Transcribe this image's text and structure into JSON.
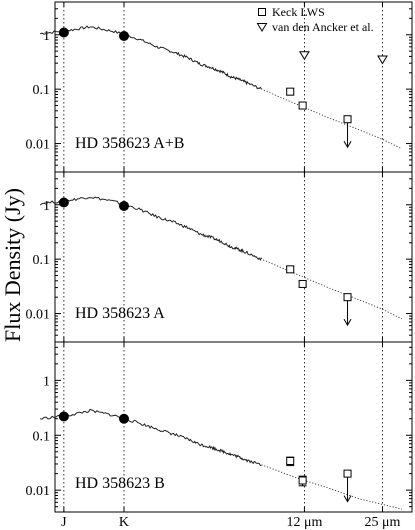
{
  "chart_data": {
    "type": "scatter",
    "ylabel": "Flux Density (Jy)",
    "xscale": "log",
    "yscale": "log",
    "x_unit": "μm",
    "x_ticks": [
      {
        "value": 1.25,
        "label": "J"
      },
      {
        "value": 2.2,
        "label": "K"
      },
      {
        "value": 12,
        "label": "12 μm"
      },
      {
        "value": 25,
        "label": "25 μm"
      }
    ],
    "y_ticks": [
      {
        "value": 1,
        "label": "1"
      },
      {
        "value": 0.1,
        "label": "0.1"
      },
      {
        "value": 0.01,
        "label": "0.01"
      }
    ],
    "legend": {
      "placement": "top-right",
      "entries": [
        {
          "name": "Keck LWS",
          "marker": "square"
        },
        {
          "name": "van den Ancker et al.",
          "marker": "triangle-down"
        }
      ]
    },
    "panels": [
      {
        "label": "HD 358623 A+B",
        "ylim": [
          0.003,
          4
        ],
        "nir_points": [
          {
            "x": 1.25,
            "y": 1.1
          },
          {
            "x": 2.2,
            "y": 0.95
          }
        ],
        "keck_lws": [
          {
            "x": 10.5,
            "y": 0.09,
            "err": 0.012
          },
          {
            "x": 11.8,
            "y": 0.05,
            "err": 0.006
          },
          {
            "x": 18.0,
            "y": 0.028,
            "upper_limit": true
          }
        ],
        "van_den_ancker": [
          {
            "x": 12.0,
            "y": 0.42
          },
          {
            "x": 25.0,
            "y": 0.35
          }
        ],
        "spectrum": [
          [
            1.0,
            1.05
          ],
          [
            1.3,
            1.2
          ],
          [
            1.6,
            1.4
          ],
          [
            2.0,
            1.15
          ],
          [
            2.5,
            0.85
          ],
          [
            3.0,
            0.6
          ],
          [
            3.5,
            0.48
          ],
          [
            4.0,
            0.38
          ],
          [
            4.5,
            0.29
          ],
          [
            5.0,
            0.25
          ],
          [
            5.5,
            0.21
          ],
          [
            6.0,
            0.17
          ],
          [
            6.5,
            0.15
          ],
          [
            7.0,
            0.13
          ],
          [
            8.0,
            0.1
          ],
          [
            9.0,
            0.08
          ],
          [
            10.0,
            0.065
          ],
          [
            12.0,
            0.046
          ],
          [
            15.0,
            0.03
          ],
          [
            20.0,
            0.018
          ],
          [
            25.0,
            0.012
          ],
          [
            30.0,
            0.008
          ]
        ]
      },
      {
        "label": "HD 358623 A",
        "ylim": [
          0.003,
          4
        ],
        "nir_points": [
          {
            "x": 1.25,
            "y": 1.1
          },
          {
            "x": 2.2,
            "y": 0.95
          }
        ],
        "keck_lws": [
          {
            "x": 10.5,
            "y": 0.065,
            "err": 0.008
          },
          {
            "x": 11.8,
            "y": 0.035,
            "err": 0.004
          },
          {
            "x": 18.0,
            "y": 0.02,
            "upper_limit": true
          }
        ],
        "van_den_ancker": [],
        "spectrum": [
          [
            1.0,
            1.05
          ],
          [
            1.3,
            1.2
          ],
          [
            1.6,
            1.4
          ],
          [
            2.0,
            1.15
          ],
          [
            2.5,
            0.85
          ],
          [
            3.0,
            0.6
          ],
          [
            3.5,
            0.48
          ],
          [
            4.0,
            0.38
          ],
          [
            4.5,
            0.29
          ],
          [
            5.0,
            0.25
          ],
          [
            5.5,
            0.21
          ],
          [
            6.0,
            0.17
          ],
          [
            6.5,
            0.15
          ],
          [
            7.0,
            0.13
          ],
          [
            8.0,
            0.1
          ],
          [
            9.0,
            0.08
          ],
          [
            10.0,
            0.065
          ],
          [
            12.0,
            0.046
          ],
          [
            15.0,
            0.03
          ],
          [
            20.0,
            0.018
          ],
          [
            25.0,
            0.012
          ],
          [
            30.0,
            0.008
          ]
        ]
      },
      {
        "label": "HD 358623 B",
        "ylim": [
          0.004,
          5
        ],
        "nir_points": [
          {
            "x": 1.25,
            "y": 0.22
          },
          {
            "x": 2.2,
            "y": 0.2
          }
        ],
        "keck_lws": [
          {
            "x": 10.5,
            "y": 0.034,
            "err": 0.006
          },
          {
            "x": 11.8,
            "y": 0.015,
            "err": 0.003
          },
          {
            "x": 18.0,
            "y": 0.02,
            "upper_limit": true
          }
        ],
        "van_den_ancker": [],
        "spectrum": [
          [
            1.0,
            0.2
          ],
          [
            1.3,
            0.23
          ],
          [
            1.6,
            0.28
          ],
          [
            2.0,
            0.23
          ],
          [
            2.5,
            0.17
          ],
          [
            3.0,
            0.13
          ],
          [
            3.5,
            0.105
          ],
          [
            4.0,
            0.085
          ],
          [
            4.5,
            0.068
          ],
          [
            5.0,
            0.06
          ],
          [
            5.5,
            0.052
          ],
          [
            6.0,
            0.045
          ],
          [
            6.5,
            0.04
          ],
          [
            7.0,
            0.035
          ],
          [
            8.0,
            0.029
          ],
          [
            9.0,
            0.024
          ],
          [
            10.0,
            0.02
          ],
          [
            12.0,
            0.015
          ],
          [
            15.0,
            0.011
          ],
          [
            20.0,
            0.007
          ],
          [
            25.0,
            0.0055
          ],
          [
            30.0,
            0.0045
          ]
        ]
      }
    ]
  }
}
